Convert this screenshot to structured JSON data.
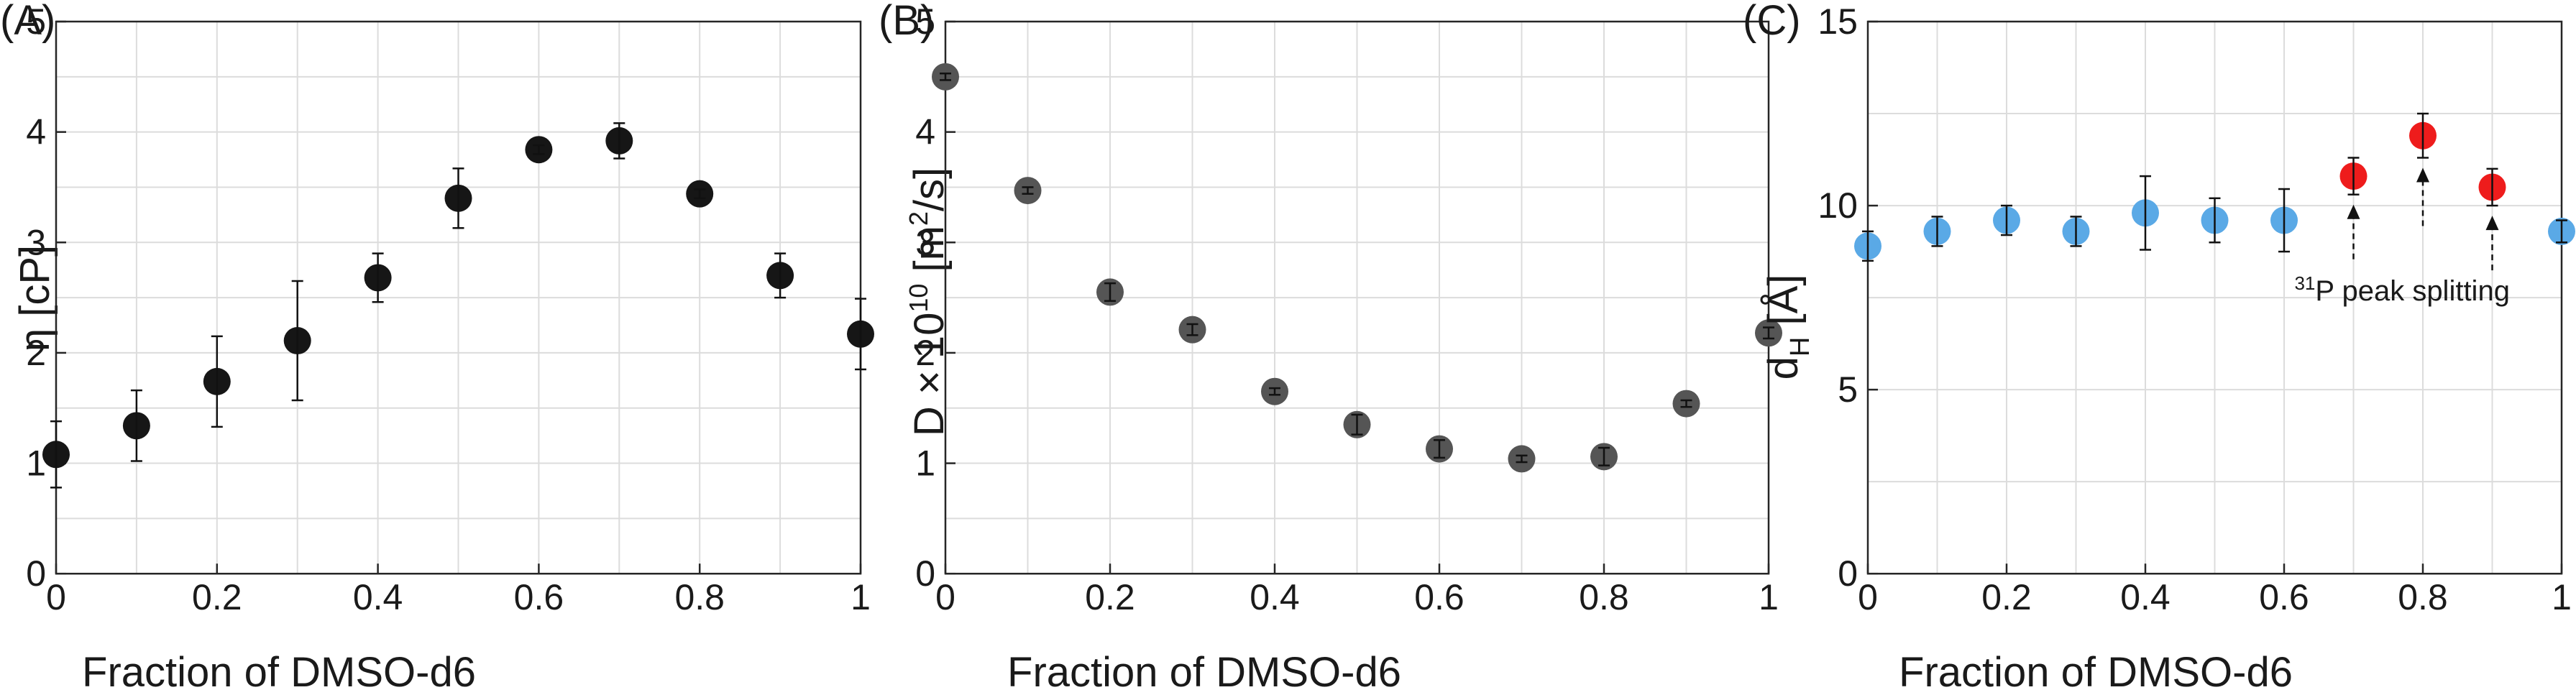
{
  "chart_data": [
    {
      "type": "scatter",
      "panel_label": "(A)",
      "xlabel": "Fraction of DMSO-d6",
      "ylabel": "η [cP]",
      "xlim": [
        0,
        1
      ],
      "ylim": [
        0,
        5
      ],
      "xticks": [
        0,
        0.2,
        0.4,
        0.6,
        0.8,
        1
      ],
      "xtick_labels": [
        "0",
        "0.2",
        "0.4",
        "0.6",
        "0.8",
        "1"
      ],
      "yticks": [
        0,
        1,
        2,
        3,
        4,
        5
      ],
      "ytick_labels": [
        "0",
        "1",
        "2",
        "3",
        "4",
        "5"
      ],
      "grid": true,
      "marker_color": "#161616",
      "series": [
        {
          "x": [
            0,
            0.1,
            0.2,
            0.3,
            0.4,
            0.5,
            0.6,
            0.7,
            0.8,
            0.9,
            1.0
          ],
          "y": [
            1.08,
            1.34,
            1.74,
            2.11,
            2.68,
            3.4,
            3.84,
            3.92,
            3.44,
            2.7,
            2.17
          ],
          "err": [
            0.3,
            0.32,
            0.41,
            0.54,
            0.22,
            0.27,
            0.04,
            0.16,
            0.04,
            0.2,
            0.32
          ]
        }
      ]
    },
    {
      "type": "scatter",
      "panel_label": "(B)",
      "xlabel": "Fraction of DMSO-d6",
      "ylabel_main": "D × 10",
      "ylabel_sup": "10",
      "ylabel_unit": " [m",
      "ylabel_unit_sup": "2",
      "ylabel_end": "/s]",
      "xlim": [
        0,
        1
      ],
      "ylim": [
        0,
        5
      ],
      "xticks": [
        0,
        0.2,
        0.4,
        0.6,
        0.8,
        1
      ],
      "xtick_labels": [
        "0",
        "0.2",
        "0.4",
        "0.6",
        "0.8",
        "1"
      ],
      "yticks": [
        0,
        1,
        2,
        3,
        4,
        5
      ],
      "ytick_labels": [
        "0",
        "1",
        "2",
        "3",
        "4",
        "5"
      ],
      "grid": true,
      "marker_color": "#555555",
      "series": [
        {
          "x": [
            0,
            0.1,
            0.2,
            0.3,
            0.4,
            0.5,
            0.6,
            0.7,
            0.8,
            0.9,
            1.0
          ],
          "y": [
            4.5,
            3.47,
            2.55,
            2.21,
            1.65,
            1.35,
            1.13,
            1.04,
            1.06,
            1.54,
            2.18
          ],
          "err": [
            0.03,
            0.03,
            0.08,
            0.05,
            0.03,
            0.09,
            0.08,
            0.03,
            0.08,
            0.03,
            0.05
          ]
        }
      ]
    },
    {
      "type": "scatter",
      "panel_label": "(C)",
      "xlabel": "Fraction of DMSO-d6",
      "ylabel_main": "d",
      "ylabel_sub": "H",
      "ylabel_unit": " [Å]",
      "xlim": [
        0,
        1
      ],
      "ylim": [
        0,
        15
      ],
      "xticks": [
        0,
        0.2,
        0.4,
        0.6,
        0.8,
        1
      ],
      "xtick_labels": [
        "0",
        "0.2",
        "0.4",
        "0.6",
        "0.8",
        "1"
      ],
      "yticks": [
        0,
        5,
        10,
        15
      ],
      "ytick_labels": [
        "0",
        "5",
        "10",
        "15"
      ],
      "grid": true,
      "series": [
        {
          "color": "#5aa9e6",
          "x": [
            0,
            0.1,
            0.2,
            0.3,
            0.4,
            0.5,
            0.6,
            1.0
          ],
          "y": [
            8.9,
            9.3,
            9.6,
            9.3,
            9.8,
            9.6,
            9.6,
            9.3
          ],
          "err": [
            0.4,
            0.4,
            0.4,
            0.4,
            1.0,
            0.6,
            0.85,
            0.3
          ]
        },
        {
          "color": "#ee1c1c",
          "x": [
            0.7,
            0.8,
            0.9
          ],
          "y": [
            10.8,
            11.9,
            10.5
          ],
          "err": [
            0.5,
            0.6,
            0.5
          ]
        }
      ],
      "annotation": {
        "sup": "31",
        "text": "P peak splitting"
      }
    }
  ]
}
